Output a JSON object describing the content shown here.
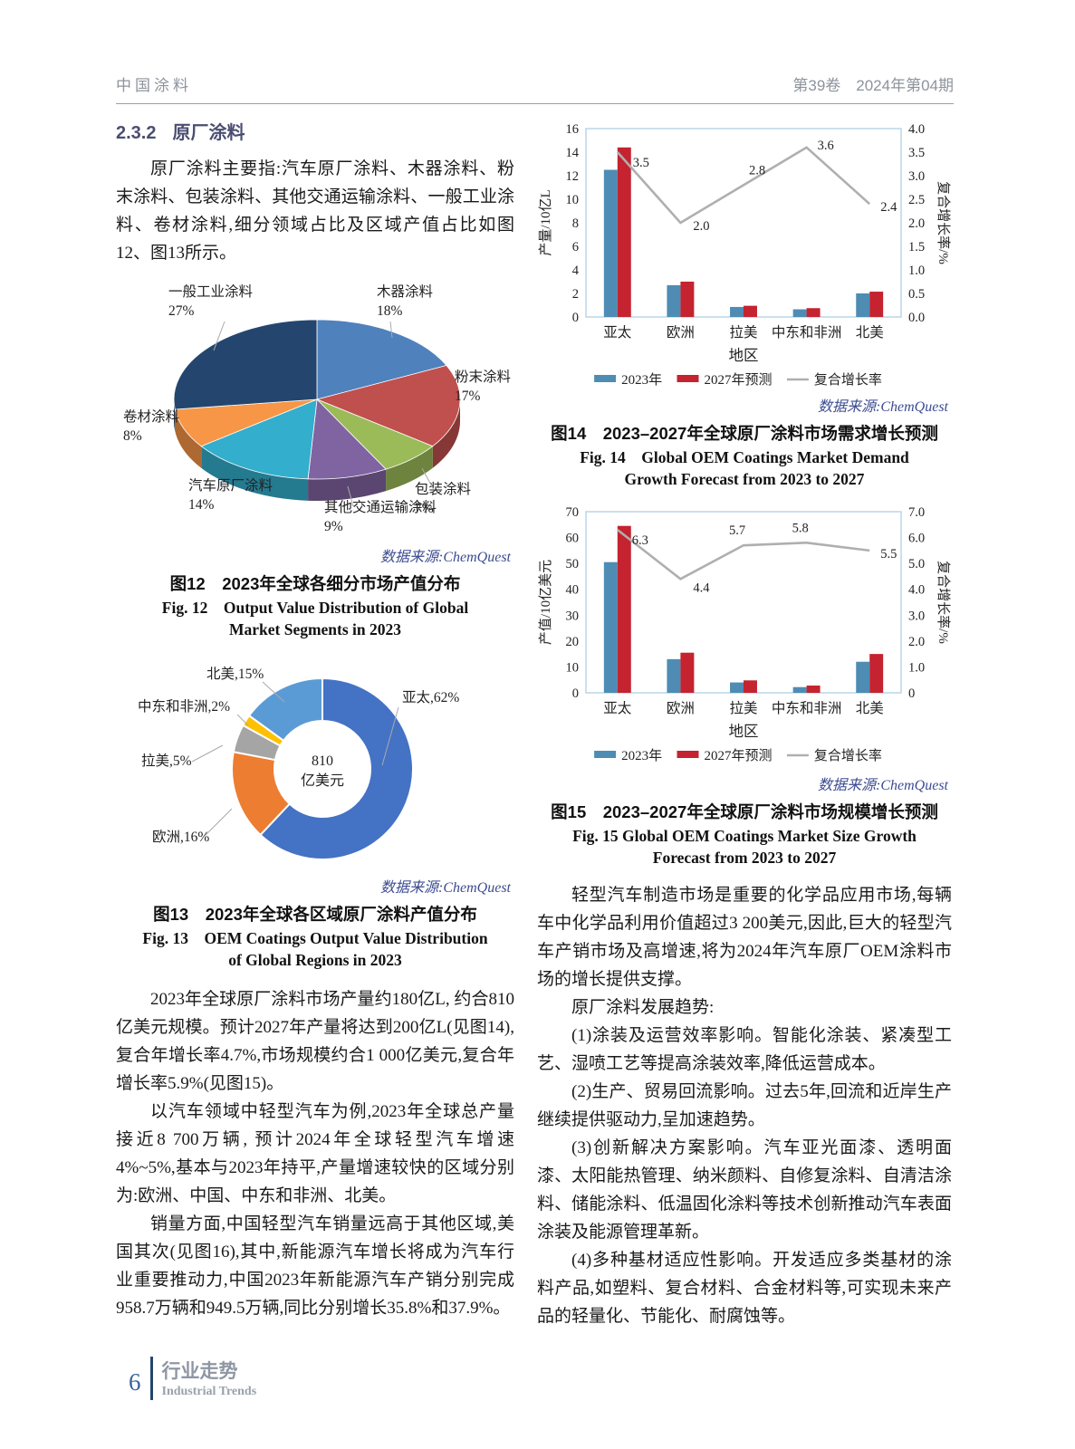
{
  "header": {
    "journal_title": "中国涂料",
    "issue_info": "第39卷　2024年第04期"
  },
  "section": {
    "number": "2.3.2",
    "title": "原厂涂料"
  },
  "source_label": "数据来源:ChemQuest",
  "paragraphs": {
    "intro": "原厂涂料主要指:汽车原厂涂料、木器涂料、粉末涂料、包装涂料、其他交通运输涂料、一般工业涂料、卷材涂料,细分领域占比及区域产值占比如图12、图13所示。",
    "left_p1": "2023年全球原厂涂料市场产量约180亿L, 约合810亿美元规模。预计2027年产量将达到200亿L(见图14),复合年增长率4.7%,市场规模约合1 000亿美元,复合年增长率5.9%(见图15)。",
    "left_p2": "以汽车领域中轻型汽车为例,2023年全球总产量接近8 700万辆, 预计2024年全球轻型汽车增速4%~5%,基本与2023年持平,产量增速较快的区域分别为:欧洲、中国、中东和非洲、北美。",
    "left_p3": "销量方面,中国轻型汽车销量远高于其他区域,美国其次(见图16),其中,新能源汽车增长将成为汽车行业重要推动力,中国2023年新能源汽车产销分别完成958.7万辆和949.5万辆,同比分别增长35.8%和37.9%。",
    "right_p1": "轻型汽车制造市场是重要的化学品应用市场,每辆车中化学品利用价值超过3 200美元,因此,巨大的轻型汽车产销市场及高增速,将为2024年汽车原厂OEM涂料市场的增长提供支撑。",
    "right_p2": "原厂涂料发展趋势:",
    "right_p3": "(1)涂装及运营效率影响。智能化涂装、紧凑型工艺、湿喷工艺等提高涂装效率,降低运营成本。",
    "right_p4": "(2)生产、贸易回流影响。过去5年,回流和近岸生产继续提供驱动力,呈加速趋势。",
    "right_p5": "(3)创新解决方案影响。汽车亚光面漆、透明面漆、太阳能热管理、纳米颜料、自修复涂料、自清洁涂料、储能涂料、低温固化涂料等技术创新推动汽车表面涂装及能源管理革新。",
    "right_p6": "(4)多种基材适应性影响。开发适应多类基材的涂料产品,如塑料、复合材料、合金材料等,可实现未来产品的轻量化、节能化、耐腐蚀等。"
  },
  "captions": {
    "fig12_zh": "图12　2023年全球各细分市场产值分布",
    "fig12_en": "Fig. 12　Output Value Distribution of Global Market Segments in 2023",
    "fig13_zh": "图13　2023年全球各区域原厂涂料产值分布",
    "fig13_en": "Fig. 13　OEM Coatings Output Value Distribution of Global Regions in 2023",
    "fig14_zh": "图14　2023–2027年全球原厂涂料市场需求增长预测",
    "fig14_en": "Fig. 14　Global OEM Coatings Market Demand Growth Forecast from 2023 to 2027",
    "fig15_zh": "图15　2023–2027年全球原厂涂料市场规模增长预测",
    "fig15_en": "Fig. 15 Global OEM Coatings Market Size Growth Forecast from 2023 to 2027"
  },
  "footer": {
    "page_number": "6",
    "column_zh": "行业走势",
    "column_en": "Industrial Trends"
  },
  "chart_data": [
    {
      "figure": "图12",
      "type": "pie",
      "style": "3d",
      "title": "2023年全球各细分市场产值分布",
      "labels": [
        "木器涂料",
        "粉末涂料",
        "包装涂料",
        "其他交通运输涂料",
        "汽车原厂涂料",
        "卷材涂料",
        "一般工业涂料"
      ],
      "values": [
        18,
        17,
        7,
        9,
        14,
        8,
        27
      ],
      "unit": "%",
      "colors": [
        "#4F81BD",
        "#C0504D",
        "#9BBB59",
        "#8064A2",
        "#33AECC",
        "#F79646",
        "#24466E"
      ],
      "source": "数据来源:ChemQuest"
    },
    {
      "figure": "图13",
      "type": "pie",
      "style": "donut",
      "title": "2023年全球各区域原厂涂料产值分布",
      "labels": [
        "亚太",
        "欧洲",
        "拉美",
        "中东和非洲",
        "北美"
      ],
      "values": [
        62,
        16,
        5,
        2,
        15
      ],
      "unit": "%",
      "colors": [
        "#4472C4",
        "#ED7D31",
        "#A5A5A5",
        "#FFC000",
        "#5B9BD5"
      ],
      "center_text": [
        "810",
        "亿美元"
      ],
      "source": "数据来源:ChemQuest"
    },
    {
      "figure": "图14",
      "type": "bar+line",
      "title": "2023–2027年全球原厂涂料市场需求增长预测",
      "categories": [
        "亚太",
        "欧洲",
        "拉美",
        "中东和非洲",
        "北美"
      ],
      "series": [
        {
          "name": "2023年",
          "type": "bar",
          "axis": "left",
          "color": "#4E8CB4",
          "values": [
            12.5,
            2.7,
            0.85,
            0.65,
            2.0
          ]
        },
        {
          "name": "2027年预测",
          "type": "bar",
          "axis": "left",
          "color": "#C4232F",
          "values": [
            14.4,
            3.0,
            0.95,
            0.75,
            2.15
          ]
        },
        {
          "name": "复合增长率",
          "type": "line",
          "axis": "right",
          "color": "#AFAFAF",
          "values": [
            3.5,
            2.0,
            2.8,
            3.6,
            2.4
          ]
        }
      ],
      "xlabel": "地区",
      "ylabel_left": "产量/10亿L",
      "ylabel_right": "复合增长率/%",
      "ylim_left": [
        0,
        16
      ],
      "yticks_left": [
        "0",
        "2",
        "4",
        "6",
        "8",
        "10",
        "12",
        "14",
        "16"
      ],
      "ylim_right": [
        0,
        4
      ],
      "yticks_right": [
        "0.0",
        "0.5",
        "1.0",
        "1.5",
        "2.0",
        "2.5",
        "3.0",
        "3.5",
        "4.0"
      ],
      "grid": false,
      "legend_position": "bottom",
      "source": "数据来源:ChemQuest"
    },
    {
      "figure": "图15",
      "type": "bar+line",
      "title": "2023–2027年全球原厂涂料市场规模增长预测",
      "categories": [
        "亚太",
        "欧洲",
        "拉美",
        "中东和非洲",
        "北美"
      ],
      "series": [
        {
          "name": "2023年",
          "type": "bar",
          "axis": "left",
          "color": "#4E8CB4",
          "values": [
            50.5,
            13,
            4,
            2.2,
            12
          ]
        },
        {
          "name": "2027年预测",
          "type": "bar",
          "axis": "left",
          "color": "#C4232F",
          "values": [
            64.5,
            15.5,
            4.8,
            2.8,
            15
          ]
        },
        {
          "name": "复合增长率",
          "type": "line",
          "axis": "right",
          "color": "#AFAFAF",
          "values": [
            6.3,
            4.4,
            5.7,
            5.8,
            5.5
          ]
        }
      ],
      "xlabel": "地区",
      "ylabel_left": "产值/10亿美元",
      "ylabel_right": "复合增长率/%",
      "ylim_left": [
        0,
        70
      ],
      "yticks_left": [
        "0",
        "10",
        "20",
        "30",
        "40",
        "50",
        "60",
        "70"
      ],
      "ylim_right": [
        0,
        7
      ],
      "yticks_right": [
        "0",
        "1.0",
        "2.0",
        "3.0",
        "4.0",
        "5.0",
        "6.0",
        "7.0"
      ],
      "grid": false,
      "legend_position": "bottom",
      "source": "数据来源:ChemQuest"
    }
  ]
}
